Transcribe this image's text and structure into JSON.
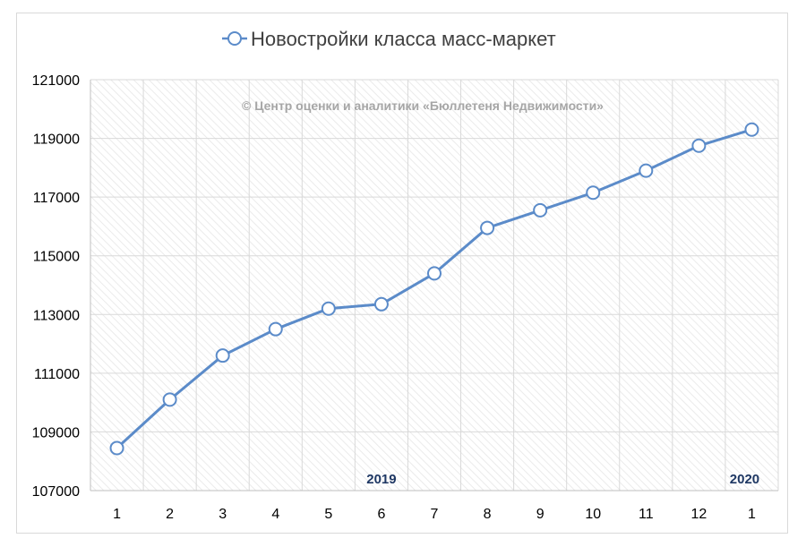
{
  "chart_data": {
    "type": "line",
    "title": "Новостройки класса масс-маркет",
    "watermark": "© Центр оценки и аналитики «Бюллетеня Недвижимости»",
    "categories": [
      "1",
      "2",
      "3",
      "4",
      "5",
      "6",
      "7",
      "8",
      "9",
      "10",
      "11",
      "12",
      "1"
    ],
    "series": [
      {
        "name": "Новостройки класса масс-маркет",
        "color": "#5b8bc9",
        "marker": "open-circle",
        "values": [
          108450,
          110100,
          111600,
          112500,
          113200,
          113350,
          114400,
          115950,
          116550,
          117150,
          117900,
          118750,
          119300
        ]
      }
    ],
    "ylim": [
      107000,
      121000
    ],
    "yticks": [
      "107000",
      "109000",
      "111000",
      "113000",
      "115000",
      "117000",
      "119000",
      "121000"
    ],
    "year_labels": [
      {
        "text": "2019",
        "category_index": 5
      },
      {
        "text": "2020",
        "category_index": 12
      }
    ],
    "grid": true,
    "legend": "top-center"
  }
}
